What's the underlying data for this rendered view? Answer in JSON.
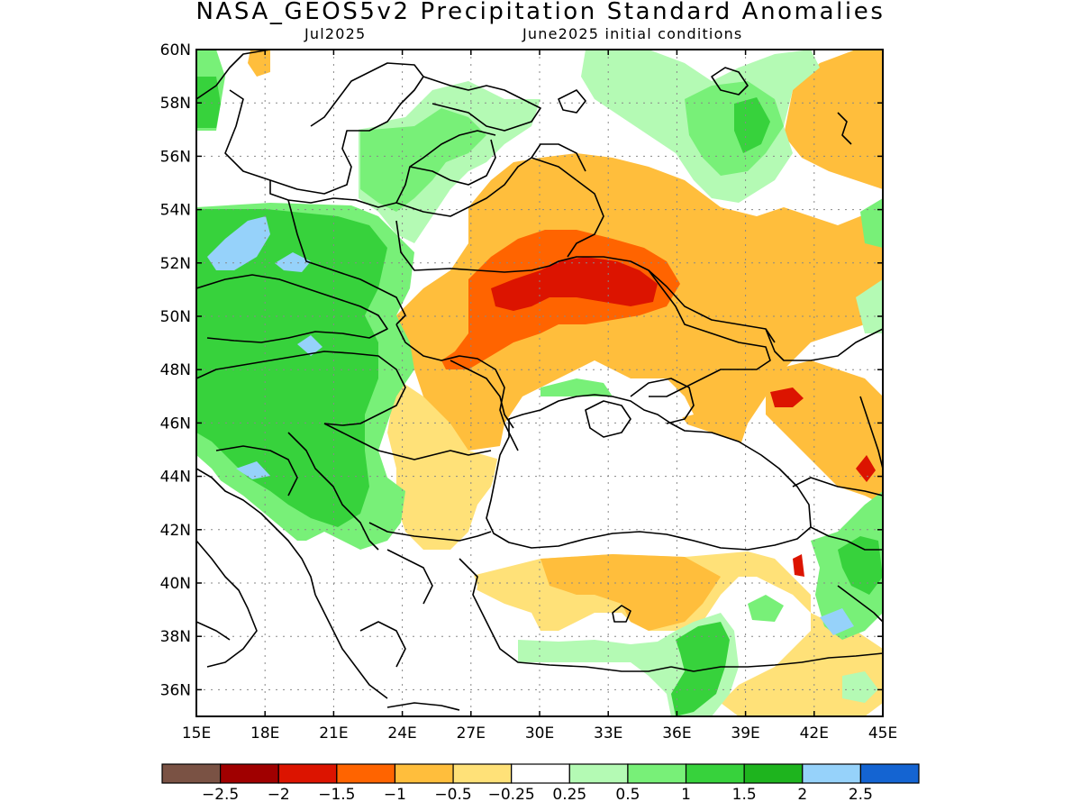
{
  "title": "NASA_GEOS5v2 Precipitation Standard Anomalies",
  "subtitle_left": "Jul2025",
  "subtitle_right": "June2025 initial conditions",
  "map": {
    "lon_ticks": [
      "15E",
      "18E",
      "21E",
      "24E",
      "27E",
      "30E",
      "33E",
      "36E",
      "39E",
      "42E",
      "45E"
    ],
    "lat_ticks": [
      "60N",
      "58N",
      "56N",
      "54N",
      "52N",
      "50N",
      "48N",
      "46N",
      "44N",
      "42N",
      "40N",
      "38N",
      "36N"
    ],
    "lon_range": [
      15,
      45
    ],
    "lat_range": [
      35,
      60
    ],
    "grid": "dotted"
  },
  "colorbar": {
    "colors": [
      "#7a5244",
      "#a00000",
      "#dc1400",
      "#ff6400",
      "#ffbe3c",
      "#ffe178",
      "#ffffff",
      "#b4fab4",
      "#78f078",
      "#37d23c",
      "#1eb41e",
      "#96d2fa",
      "#1464d2"
    ],
    "labels": [
      "−2.5",
      "−2",
      "−1.5",
      "−1",
      "−0.5",
      "−0.25",
      "0.25",
      "0.5",
      "1",
      "1.5",
      "2",
      "2.5"
    ]
  },
  "colors": {
    "orange_light": "#ffbe3c",
    "yellow": "#ffe178",
    "orange": "#ff6400",
    "red": "#dc1400",
    "green_pale": "#b4fab4",
    "green_light": "#78f078",
    "green": "#37d23c",
    "green_dark": "#1eb41e",
    "blue_light": "#96d2fa"
  }
}
